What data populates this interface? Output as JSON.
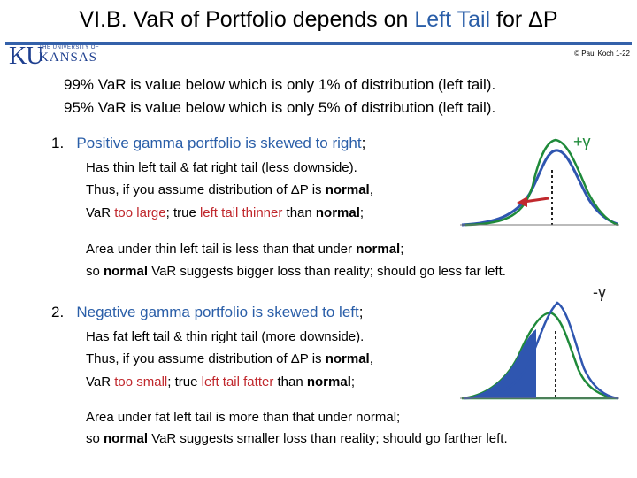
{
  "title": {
    "prefix": "VI.B.  Va",
    "r": "R of Portfolio depends on ",
    "highlight": "Left Tail",
    "suffix": " for ΔP"
  },
  "logo": {
    "mark": "KU",
    "small": "THE UNIVERSITY OF",
    "name": "KANSAS"
  },
  "credit": "© Paul Koch 1-22",
  "intro": [
    "99% VaR is value below which is only 1% of distribution (left tail).",
    "95% VaR is value below which is only 5% of distribution (left tail)."
  ],
  "section1": {
    "number": "1.",
    "heading": "Positive gamma portfolio is skewed to right",
    "heading_end": ";",
    "line1": "Has  thin left tail  &  fat right tail  (less downside).",
    "line2_a": "Thus, if you assume distribution of  ΔP  is ",
    "line2_b": "normal",
    "line2_c": ",",
    "line3_a": "VaR  ",
    "line3_b": "too large",
    "line3_c": ";  true  ",
    "line3_d": "left tail  thinner",
    "line3_e": " than ",
    "line3_f": "normal",
    "line3_g": ";",
    "line4_a": "Area under  thin left tail  is less than  that  under ",
    "line4_b": "normal",
    "line4_c": ";",
    "line5_a": "so  ",
    "line5_b": "normal",
    "line5_c": "  VaR  suggests bigger loss than reality;   should go less far left.",
    "gamma_label": "+γ"
  },
  "section2": {
    "number": "2.",
    "heading": "Negative gamma portfolio is skewed to left",
    "heading_end": ";",
    "line1": "Has  fat left tail  &  thin right tail  (more downside).",
    "line2_a": "Thus, if you assume distribution of  ΔP  is ",
    "line2_b": "normal",
    "line2_c": ",",
    "line3_a": "VaR  ",
    "line3_b": "too small",
    "line3_c": ";  true  ",
    "line3_d": "left tail  fatter",
    "line3_e": "  than ",
    "line3_f": "normal",
    "line3_g": ";",
    "line4": "Area under fat left tail is more than that under normal;",
    "line5_a": "so  ",
    "line5_b": "normal",
    "line5_c": "  VaR  suggests smaller loss than reality;  should go farther left.",
    "gamma_label": "-γ"
  },
  "colors": {
    "blue": "#2a5ea8",
    "red": "#c0282d",
    "green": "#1f8a3a",
    "tail": "#2f56b0",
    "rule": "#3461aa"
  }
}
